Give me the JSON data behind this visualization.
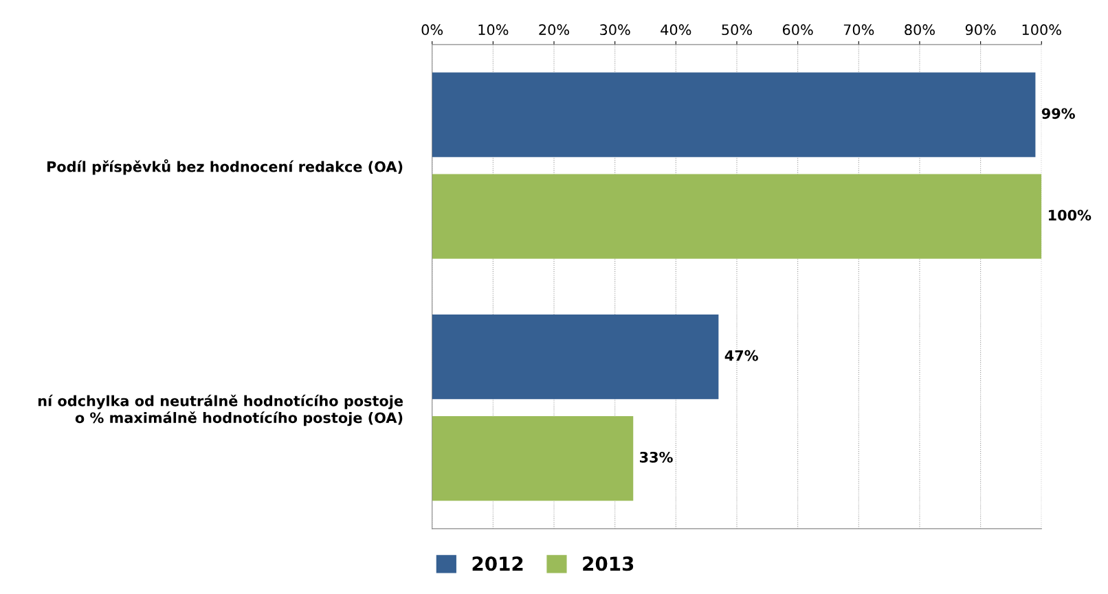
{
  "chart_data": {
    "type": "bar",
    "orientation": "horizontal",
    "categories": [
      "Podíl příspěvků bez hodnocení redakce (OA)",
      "ní odchylka od neutrálně hodnotícího postoje\no % maximálně hodnotícího postoje (OA)"
    ],
    "series": [
      {
        "name": "2012",
        "color": "#366092",
        "values": [
          99,
          47
        ],
        "value_labels": [
          "99%",
          "47%"
        ]
      },
      {
        "name": "2013",
        "color": "#9bbb59",
        "values": [
          100,
          33
        ],
        "value_labels": [
          "100%",
          "33%"
        ]
      }
    ],
    "xlim": [
      0,
      100
    ],
    "xticks": [
      {
        "value": 0,
        "label": "0%"
      },
      {
        "value": 10,
        "label": "10%"
      },
      {
        "value": 20,
        "label": "20%"
      },
      {
        "value": 30,
        "label": "30%"
      },
      {
        "value": 40,
        "label": "40%"
      },
      {
        "value": 50,
        "label": "50%"
      },
      {
        "value": 60,
        "label": "60%"
      },
      {
        "value": 70,
        "label": "70%"
      },
      {
        "value": 80,
        "label": "80%"
      },
      {
        "value": 90,
        "label": "90%"
      },
      {
        "value": 100,
        "label": "100%"
      }
    ],
    "grid": "x",
    "legend": "bottom"
  }
}
